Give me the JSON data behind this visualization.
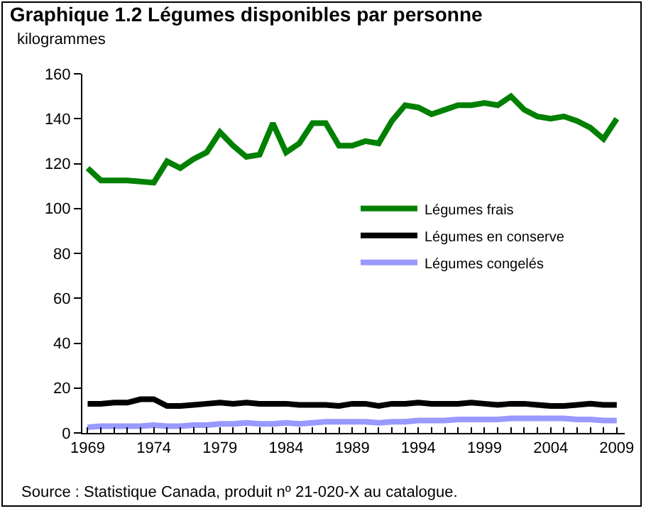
{
  "chart_data": {
    "type": "line",
    "title": "Graphique 1.2 Légumes disponibles par personne",
    "ylabel": "kilogrammes",
    "x": [
      1969,
      1970,
      1971,
      1972,
      1973,
      1974,
      1975,
      1976,
      1977,
      1978,
      1979,
      1980,
      1981,
      1982,
      1983,
      1984,
      1985,
      1986,
      1987,
      1988,
      1989,
      1990,
      1991,
      1992,
      1993,
      1994,
      1995,
      1996,
      1997,
      1998,
      1999,
      2000,
      2001,
      2002,
      2003,
      2004,
      2005,
      2006,
      2007,
      2008,
      2009
    ],
    "series": [
      {
        "name": "Légumes frais",
        "color": "#008000",
        "values": [
          118,
          112.5,
          112.5,
          112.5,
          112,
          111.5,
          121,
          118,
          122,
          125,
          134,
          128,
          123,
          124,
          138,
          125,
          129,
          138,
          138,
          128,
          128,
          130,
          129,
          139,
          146,
          145,
          142,
          144,
          146,
          146,
          147,
          146,
          150,
          144,
          141,
          140,
          141,
          139,
          136,
          131,
          140
        ]
      },
      {
        "name": "Légumes en conserve",
        "color": "#000000",
        "values": [
          13,
          13,
          13.5,
          13.5,
          15,
          15,
          12,
          12,
          12.5,
          13,
          13.5,
          13,
          13.5,
          13,
          13,
          13,
          12.5,
          12.5,
          12.5,
          12,
          13,
          13,
          12,
          13,
          13,
          13.5,
          13,
          13,
          13,
          13.5,
          13,
          12.5,
          13,
          13,
          12.5,
          12,
          12,
          12.5,
          13,
          12.5,
          12.5
        ]
      },
      {
        "name": "Légumes congelés",
        "color": "#9999ff",
        "values": [
          2.5,
          3,
          3,
          3,
          3,
          3.5,
          3,
          3,
          3.5,
          3.5,
          4,
          4,
          4.5,
          4,
          4,
          4.5,
          4,
          4.5,
          5,
          5,
          5,
          5,
          4.5,
          5,
          5,
          5.5,
          5.5,
          5.5,
          6,
          6,
          6,
          6,
          6.5,
          6.5,
          6.5,
          6.5,
          6.5,
          6,
          6,
          5.5,
          5.5
        ]
      }
    ],
    "xlim": [
      1968.6,
      2009.6
    ],
    "xticks": [
      1969,
      {
        "value": 1970,
        "label": null
      },
      {
        "value": 1971,
        "label": null
      },
      {
        "value": 1972,
        "label": null
      },
      {
        "value": 1973,
        "label": null
      },
      1974,
      {
        "value": 1975,
        "label": null
      },
      {
        "value": 1976,
        "label": null
      },
      {
        "value": 1977,
        "label": null
      },
      {
        "value": 1978,
        "label": null
      },
      1979,
      {
        "value": 1980,
        "label": null
      },
      {
        "value": 1981,
        "label": null
      },
      {
        "value": 1982,
        "label": null
      },
      {
        "value": 1983,
        "label": null
      },
      1984,
      {
        "value": 1985,
        "label": null
      },
      {
        "value": 1986,
        "label": null
      },
      {
        "value": 1987,
        "label": null
      },
      {
        "value": 1988,
        "label": null
      },
      1989,
      {
        "value": 1990,
        "label": null
      },
      {
        "value": 1991,
        "label": null
      },
      {
        "value": 1992,
        "label": null
      },
      {
        "value": 1993,
        "label": null
      },
      1994,
      {
        "value": 1995,
        "label": null
      },
      {
        "value": 1996,
        "label": null
      },
      {
        "value": 1997,
        "label": null
      },
      {
        "value": 1998,
        "label": null
      },
      1999,
      {
        "value": 2000,
        "label": null
      },
      {
        "value": 2001,
        "label": null
      },
      {
        "value": 2002,
        "label": null
      },
      {
        "value": 2003,
        "label": null
      },
      2004,
      {
        "value": 2005,
        "label": null
      },
      {
        "value": 2006,
        "label": null
      },
      {
        "value": 2007,
        "label": null
      },
      {
        "value": 2008,
        "label": null
      },
      2009
    ],
    "ylim": [
      0,
      160
    ],
    "yticks": [
      0,
      20,
      40,
      60,
      80,
      100,
      120,
      140,
      160
    ],
    "grid": false,
    "legend": "right",
    "marker": "none",
    "line_style": "solid",
    "annotations": [
      "Source : Statistique Canada, produit nº 21-020-X au catalogue."
    ]
  }
}
